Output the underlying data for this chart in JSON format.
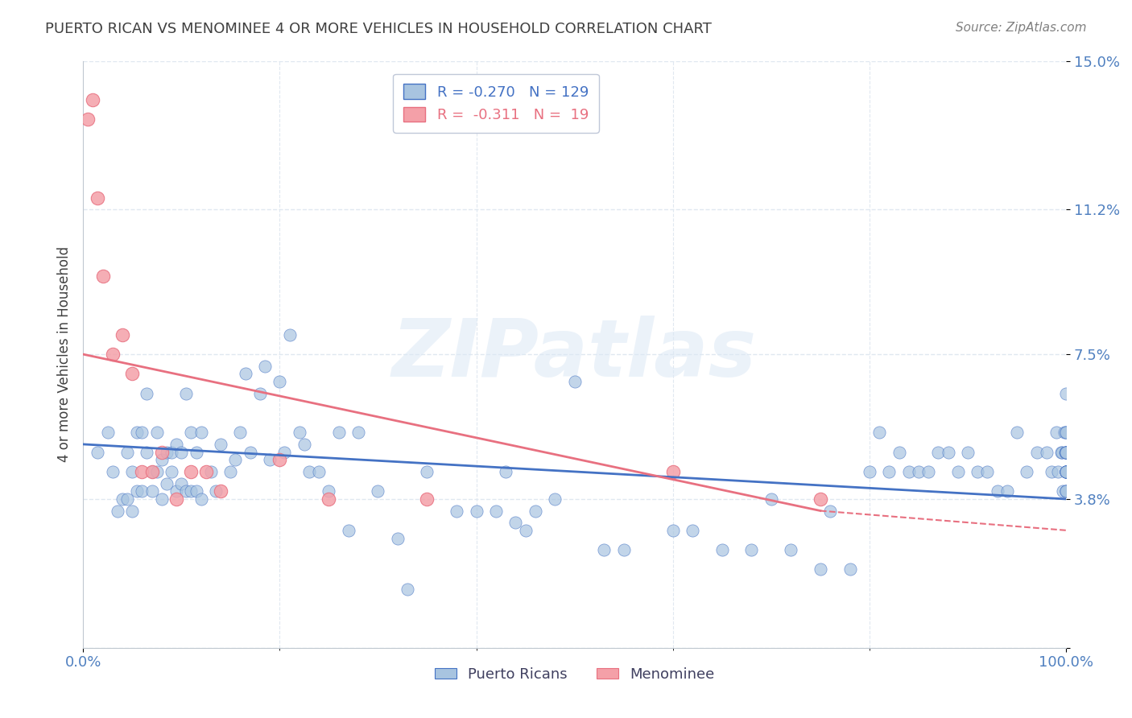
{
  "title": "PUERTO RICAN VS MENOMINEE 4 OR MORE VEHICLES IN HOUSEHOLD CORRELATION CHART",
  "source": "Source: ZipAtlas.com",
  "xlabel": "",
  "ylabel": "4 or more Vehicles in Household",
  "r_blue": -0.27,
  "n_blue": 129,
  "r_pink": -0.311,
  "n_pink": 19,
  "x_min": 0.0,
  "x_max": 100.0,
  "y_min": 0.0,
  "y_max": 15.0,
  "yticks": [
    0.0,
    3.8,
    7.5,
    11.2,
    15.0
  ],
  "ytick_labels": [
    "",
    "3.8%",
    "7.5%",
    "11.2%",
    "15.0%"
  ],
  "xtick_labels": [
    "0.0%",
    "100.0%"
  ],
  "blue_color": "#a8c4e0",
  "blue_line_color": "#4472c4",
  "pink_color": "#f4a0a8",
  "pink_line_color": "#e87080",
  "watermark_text": "ZIPatlas",
  "watermark_color": "#d0dff0",
  "blue_scatter_x": [
    1.5,
    2.5,
    3.0,
    3.5,
    4.0,
    4.5,
    4.5,
    5.0,
    5.0,
    5.5,
    5.5,
    6.0,
    6.0,
    6.5,
    6.5,
    7.0,
    7.0,
    7.5,
    7.5,
    8.0,
    8.0,
    8.5,
    8.5,
    9.0,
    9.0,
    9.5,
    9.5,
    10.0,
    10.0,
    10.5,
    10.5,
    11.0,
    11.0,
    11.5,
    11.5,
    12.0,
    12.0,
    13.0,
    13.5,
    14.0,
    15.0,
    15.5,
    16.0,
    16.5,
    17.0,
    18.0,
    18.5,
    19.0,
    20.0,
    20.5,
    21.0,
    22.0,
    22.5,
    23.0,
    24.0,
    25.0,
    26.0,
    27.0,
    28.0,
    30.0,
    32.0,
    33.0,
    35.0,
    38.0,
    40.0,
    42.0,
    43.0,
    44.0,
    45.0,
    46.0,
    48.0,
    50.0,
    53.0,
    55.0,
    60.0,
    62.0,
    65.0,
    68.0,
    70.0,
    72.0,
    75.0,
    76.0,
    78.0,
    80.0,
    81.0,
    82.0,
    83.0,
    84.0,
    85.0,
    86.0,
    87.0,
    88.0,
    89.0,
    90.0,
    91.0,
    92.0,
    93.0,
    94.0,
    95.0,
    96.0,
    97.0,
    98.0,
    98.5,
    99.0,
    99.2,
    99.5,
    99.6,
    99.7,
    99.8,
    99.9,
    100.0,
    100.0,
    100.0,
    100.0,
    100.0,
    100.0,
    100.0,
    100.0,
    100.0,
    100.0,
    100.0,
    100.0,
    100.0,
    100.0,
    100.0,
    100.0,
    100.0,
    100.0,
    100.0
  ],
  "blue_scatter_y": [
    5.0,
    5.5,
    4.5,
    3.5,
    3.8,
    5.0,
    3.8,
    4.5,
    3.5,
    5.5,
    4.0,
    5.5,
    4.0,
    6.5,
    5.0,
    4.5,
    4.0,
    5.5,
    4.5,
    4.8,
    3.8,
    5.0,
    4.2,
    5.0,
    4.5,
    5.2,
    4.0,
    5.0,
    4.2,
    6.5,
    4.0,
    5.5,
    4.0,
    5.0,
    4.0,
    5.5,
    3.8,
    4.5,
    4.0,
    5.2,
    4.5,
    4.8,
    5.5,
    7.0,
    5.0,
    6.5,
    7.2,
    4.8,
    6.8,
    5.0,
    8.0,
    5.5,
    5.2,
    4.5,
    4.5,
    4.0,
    5.5,
    3.0,
    5.5,
    4.0,
    2.8,
    1.5,
    4.5,
    3.5,
    3.5,
    3.5,
    4.5,
    3.2,
    3.0,
    3.5,
    3.8,
    6.8,
    2.5,
    2.5,
    3.0,
    3.0,
    2.5,
    2.5,
    3.8,
    2.5,
    2.0,
    3.5,
    2.0,
    4.5,
    5.5,
    4.5,
    5.0,
    4.5,
    4.5,
    4.5,
    5.0,
    5.0,
    4.5,
    5.0,
    4.5,
    4.5,
    4.0,
    4.0,
    5.5,
    4.5,
    5.0,
    5.0,
    4.5,
    5.5,
    4.5,
    5.0,
    5.0,
    4.0,
    5.5,
    5.0,
    4.5,
    4.5,
    4.5,
    4.0,
    4.5,
    4.0,
    5.0,
    5.0,
    4.5,
    5.5,
    5.5,
    5.0,
    4.5,
    5.0,
    4.5,
    6.5,
    4.5,
    4.0,
    5.0
  ],
  "pink_scatter_x": [
    0.5,
    1.0,
    1.5,
    2.0,
    3.0,
    4.0,
    5.0,
    6.0,
    7.0,
    8.0,
    9.5,
    11.0,
    12.5,
    14.0,
    20.0,
    25.0,
    35.0,
    60.0,
    75.0
  ],
  "pink_scatter_y": [
    13.5,
    14.0,
    11.5,
    9.5,
    7.5,
    8.0,
    7.0,
    4.5,
    4.5,
    5.0,
    3.8,
    4.5,
    4.5,
    4.0,
    4.8,
    3.8,
    3.8,
    4.5,
    3.8
  ],
  "blue_trend_x0": 0.0,
  "blue_trend_x1": 100.0,
  "blue_trend_y0": 5.2,
  "blue_trend_y1": 3.8,
  "pink_trend_x0": 0.0,
  "pink_trend_x1": 75.0,
  "pink_trend_y0": 7.5,
  "pink_trend_y1": 3.5,
  "grid_color": "#e0e8f0",
  "axis_color": "#c0c8d0",
  "title_color": "#404040",
  "tick_color": "#5080c0",
  "legend_blue_label_r": "R = -0.270",
  "legend_blue_label_n": "N = 129",
  "legend_pink_label_r": "R =  -0.311",
  "legend_pink_label_n": "N =  19"
}
